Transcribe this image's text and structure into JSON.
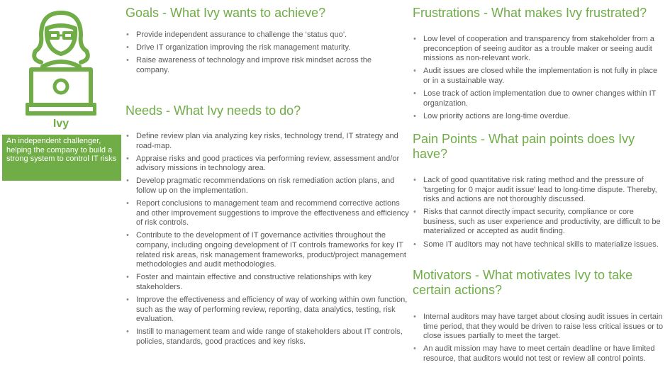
{
  "persona": {
    "name": "Ivy",
    "description": "An independent challenger, helping the company to build a strong system to control IT risks",
    "icon": "person-with-laptop-icon",
    "accent_color": "#70ad47"
  },
  "goals": {
    "title": "Goals - What Ivy wants to achieve?",
    "items": [
      "Provide independent assurance to challenge the ‘status quo’.",
      "Drive IT organization improving the risk management maturity.",
      "Raise awareness of technology and improve risk mindset across the company."
    ]
  },
  "needs": {
    "title": "Needs - What Ivy needs to do?",
    "items": [
      "Define review plan via analyzing key risks, technology trend, IT strategy and road-map.",
      "Appraise risks and good practices via performing review, assessment and/or advisory missions in technology area.",
      "Develop pragmatic recommendations on risk remediation action plans, and follow up on the implementation.",
      "Report conclusions to management team and recommend corrective actions and other improvement suggestions to improve the effectiveness and efficiency of risk controls.",
      "Contribute to the development of IT governance activities throughout the company, including ongoing development of IT controls frameworks for key IT related risk areas, risk management frameworks, product/project management methodologies and audit methodologies.",
      "Foster and maintain effective and constructive relationships with key stakeholders.",
      "Improve the effectiveness and efficiency of way of working within own function, such as the way of performing review, reporting, data analytics, testing, risk evaluation.",
      "Instill to management team and wide range of stakeholders about IT controls, policies, standards, good practices and key risks."
    ]
  },
  "frustrations": {
    "title": "Frustrations - What makes Ivy frustrated?",
    "items": [
      "Low level of cooperation and transparency from stakeholder from a preconception of seeing auditor as a trouble maker or seeing audit missions as non-relevant work.",
      "Audit issues are closed while the implementation is not fully in place or in a sustainable way.",
      "Lose track of action implementation due to owner changes within IT organization.",
      "Low priority actions are long-time overdue."
    ]
  },
  "pain_points": {
    "title": "Pain Points - What pain points does Ivy have?",
    "items": [
      "Lack of good quantitative risk rating method and the pressure of 'targeting for 0 major audit issue' lead to long-time dispute. Thereby, risks and actions are not thoroughly discussed.",
      "Risks that cannot directly impact security, compliance or core business, such as user experience and productivity, are difficult to be materialized or accepted as audit finding.",
      "Some IT auditors may not have technical skills to materialize issues."
    ]
  },
  "motivators": {
    "title": "Motivators - What motivates Ivy to take certain actions?",
    "items": [
      "Internal auditors may have target about closing audit issues in certain time period, that they would be driven to raise less critical issues or to close issues partially to meet the target.",
      "An audit mission may have to meet certain deadline or have limited resource, that auditors would not test or review all control points."
    ]
  }
}
